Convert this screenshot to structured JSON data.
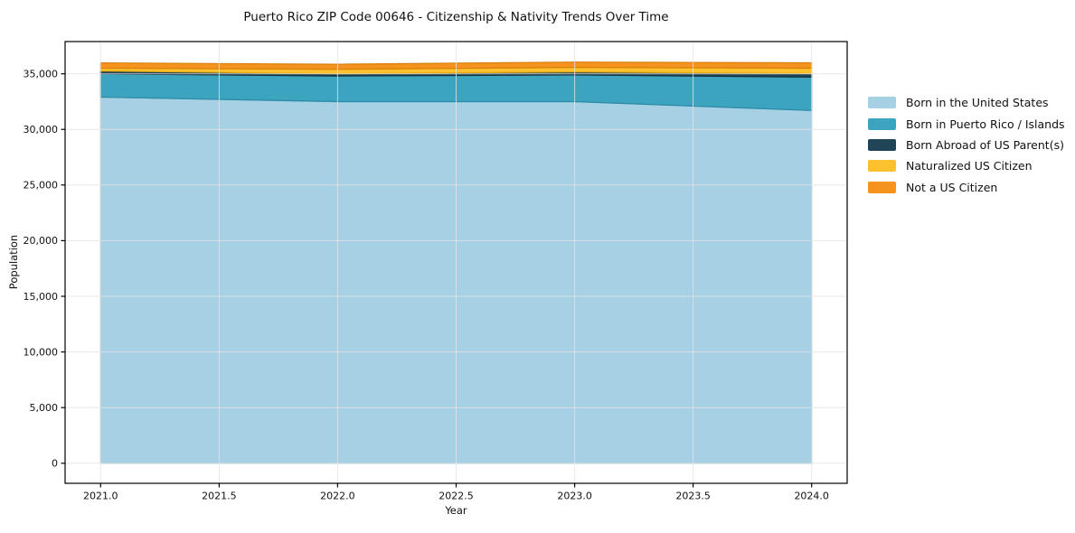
{
  "chart_data": {
    "type": "area",
    "stacked": true,
    "title": "Puerto Rico ZIP Code 00646 - Citizenship & Nativity Trends Over Time",
    "xlabel": "Year",
    "ylabel": "Population",
    "x": [
      2021,
      2022,
      2023,
      2024
    ],
    "series": [
      {
        "name": "Born in the United States",
        "color": "#a6d0e4",
        "edge_color": "#7eb6d4",
        "values": [
          32900,
          32500,
          32500,
          31700
        ]
      },
      {
        "name": "Born in Puerto Rico / Islands",
        "color": "#3da4c0",
        "edge_color": "#2b8ba6",
        "values": [
          2100,
          2300,
          2400,
          3000
        ]
      },
      {
        "name": "Born Abroad of US Parent(s)",
        "color": "#1f4557",
        "edge_color": "#132e3c",
        "values": [
          250,
          200,
          270,
          320
        ]
      },
      {
        "name": "Naturalized US Citizen",
        "color": "#fcc12d",
        "edge_color": "#e5a90f",
        "values": [
          250,
          400,
          400,
          480
        ]
      },
      {
        "name": "Not a US Citizen",
        "color": "#f5931f",
        "edge_color": "#d97f0d",
        "values": [
          480,
          460,
          480,
          490
        ]
      }
    ],
    "xlim": [
      2020.85,
      2024.15
    ],
    "ylim": [
      -1805,
      37895
    ],
    "xticks": [
      2021.0,
      2021.5,
      2022.0,
      2022.5,
      2023.0,
      2023.5,
      2024.0
    ],
    "xtick_labels": [
      "2021.0",
      "2021.5",
      "2022.0",
      "2022.5",
      "2023.0",
      "2023.5",
      "2024.0"
    ],
    "yticks": [
      0,
      5000,
      10000,
      15000,
      20000,
      25000,
      30000,
      35000
    ],
    "ytick_labels": [
      "0",
      "5,000",
      "10,000",
      "15,000",
      "20,000",
      "25,000",
      "30,000",
      "35,000"
    ],
    "grid": true,
    "grid_color": "#e4e4e4",
    "frame_color": "#000000",
    "legend": {
      "position": "right"
    }
  }
}
